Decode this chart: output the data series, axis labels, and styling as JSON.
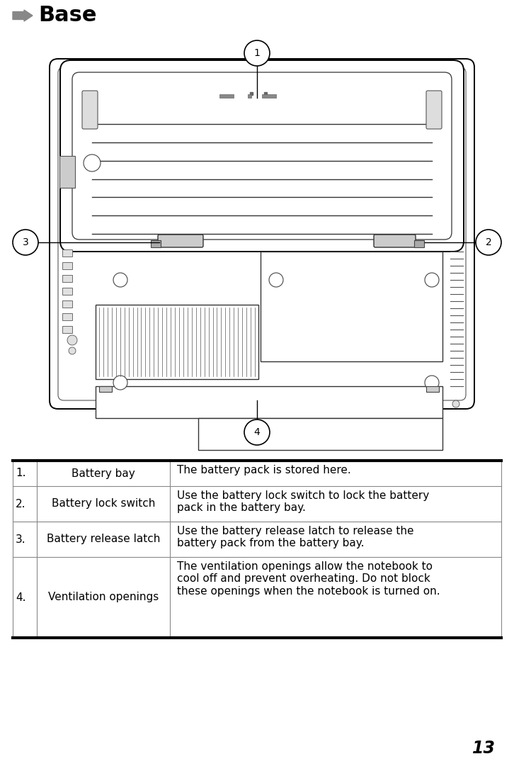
{
  "title": "Base",
  "bg_color": "#ffffff",
  "table_rows": [
    {
      "num": "1.",
      "label": "Battery bay",
      "desc": "The battery pack is stored here."
    },
    {
      "num": "2.",
      "label": "Battery lock switch",
      "desc": "Use the battery lock switch to lock the battery\npack in the battery bay."
    },
    {
      "num": "3.",
      "label": "Battery release latch",
      "desc": "Use the battery release latch to release the\nbattery pack from the battery bay."
    },
    {
      "num": "4.",
      "label": "Ventilation openings",
      "desc": "The ventilation openings allow the notebook to\ncool off and prevent overheating. Do not block\nthese openings when the notebook is turned on."
    }
  ],
  "page_number": "13",
  "callout_nums": [
    "1",
    "2",
    "3",
    "4"
  ]
}
